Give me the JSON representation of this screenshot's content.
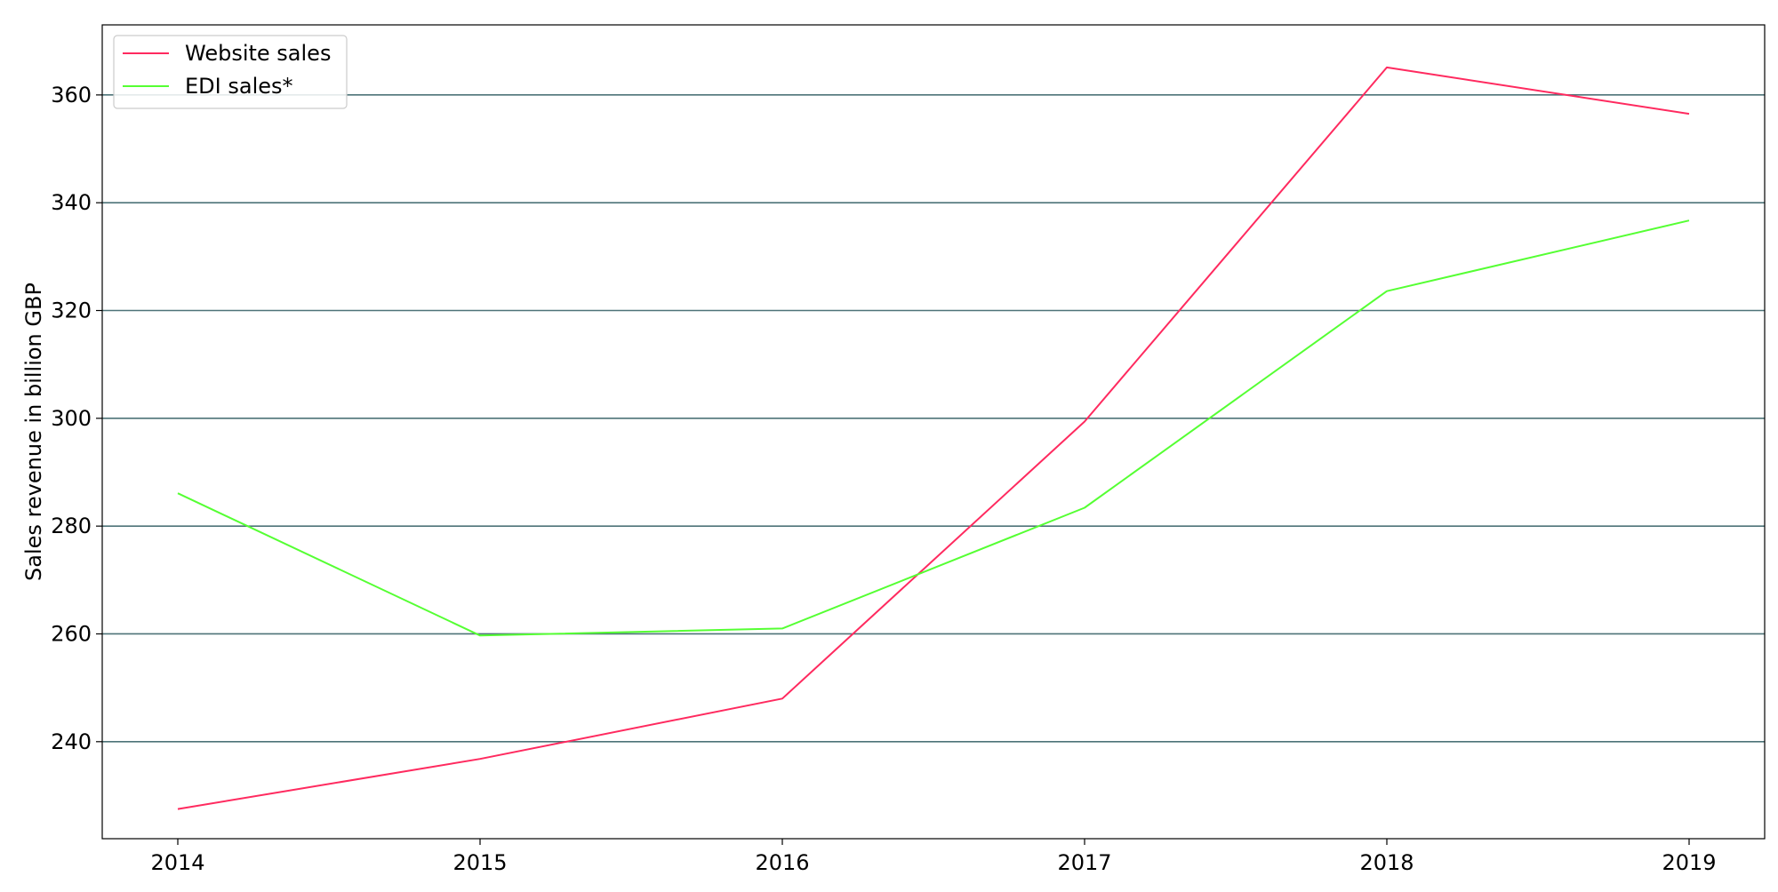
{
  "chart_data": {
    "type": "line",
    "title": "",
    "xlabel": "",
    "ylabel": "Sales revenue in billion GBP",
    "categories": [
      "2014",
      "2015",
      "2016",
      "2017",
      "2018",
      "2019"
    ],
    "ylim": [
      222,
      373
    ],
    "yticks": [
      240,
      260,
      280,
      300,
      320,
      340,
      360
    ],
    "grid": "y",
    "legend_position": "top-left",
    "series": [
      {
        "name": "Website sales",
        "color": "#ff2a5f",
        "values": [
          227.5,
          236.8,
          248.0,
          299.4,
          365.1,
          356.5
        ]
      },
      {
        "name": "EDI sales*",
        "color": "#55ff33",
        "values": [
          286.1,
          259.7,
          261.0,
          283.4,
          323.6,
          336.7
        ]
      }
    ]
  }
}
